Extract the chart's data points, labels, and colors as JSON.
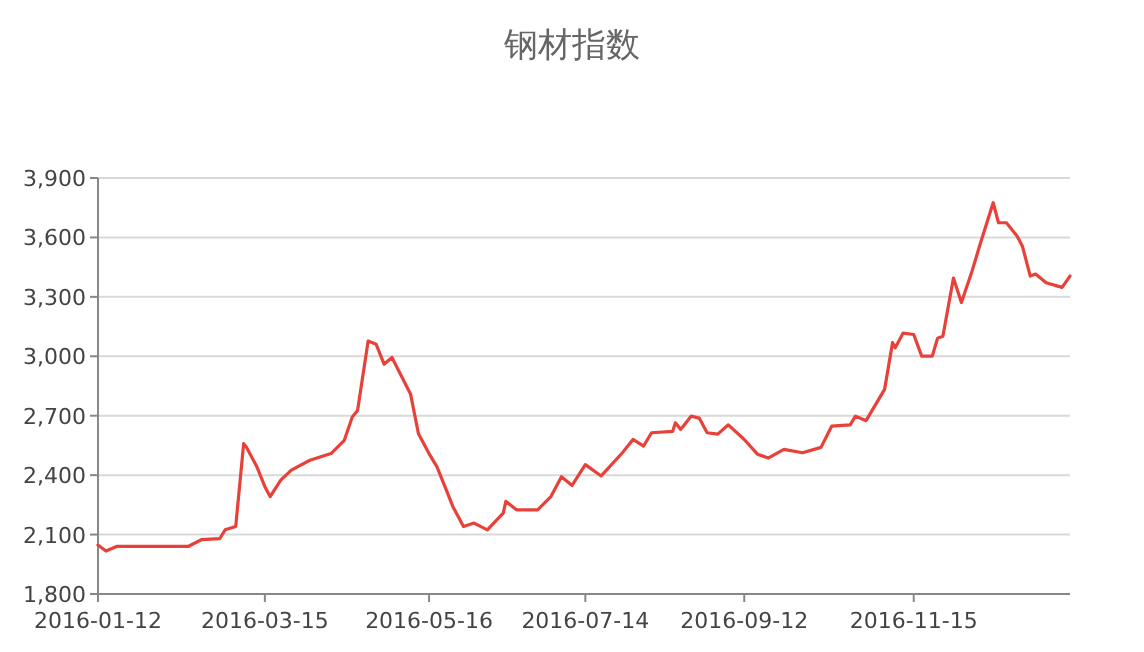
{
  "chart_data": {
    "type": "line",
    "title": "钢材指数",
    "x": [
      "2016-01-12",
      "2016-01-15",
      "2016-01-19",
      "2016-02-15",
      "2016-02-20",
      "2016-02-27",
      "2016-02-29",
      "2016-03-04",
      "2016-03-07",
      "2016-03-08",
      "2016-03-12",
      "2016-03-15",
      "2016-03-17",
      "2016-03-21",
      "2016-03-25",
      "2016-04-01",
      "2016-04-09",
      "2016-04-14",
      "2016-04-17",
      "2016-04-19",
      "2016-04-23",
      "2016-04-26",
      "2016-04-29",
      "2016-05-02",
      "2016-05-09",
      "2016-05-12",
      "2016-05-16",
      "2016-05-19",
      "2016-05-22",
      "2016-05-25",
      "2016-05-29",
      "2016-06-02",
      "2016-06-07",
      "2016-06-13",
      "2016-06-14",
      "2016-06-18",
      "2016-06-26",
      "2016-07-01",
      "2016-07-05",
      "2016-07-09",
      "2016-07-14",
      "2016-07-20",
      "2016-07-28",
      "2016-08-01",
      "2016-08-05",
      "2016-08-08",
      "2016-08-16",
      "2016-08-17",
      "2016-08-19",
      "2016-08-23",
      "2016-08-26",
      "2016-08-29",
      "2016-09-02",
      "2016-09-06",
      "2016-09-12",
      "2016-09-17",
      "2016-09-21",
      "2016-09-27",
      "2016-10-04",
      "2016-10-11",
      "2016-10-15",
      "2016-10-22",
      "2016-10-24",
      "2016-10-28",
      "2016-11-04",
      "2016-11-07",
      "2016-11-08",
      "2016-11-11",
      "2016-11-15",
      "2016-11-18",
      "2016-11-22",
      "2016-11-24",
      "2016-11-26",
      "2016-11-30",
      "2016-12-03",
      "2016-12-07",
      "2016-12-10",
      "2016-12-15",
      "2016-12-17",
      "2016-12-20",
      "2016-12-24",
      "2016-12-26",
      "2016-12-29",
      "2016-12-31",
      "2017-01-04",
      "2017-01-10",
      "2017-01-13"
    ],
    "series": [
      {
        "color": "#e8413a",
        "values": [
          2047,
          2017,
          2040,
          2040,
          2074,
          2080,
          2124,
          2141,
          2559,
          2542,
          2442,
          2342,
          2292,
          2375,
          2425,
          2475,
          2509,
          2576,
          2693,
          2726,
          3077,
          3061,
          2960,
          2994,
          2810,
          2609,
          2509,
          2442,
          2342,
          2241,
          2141,
          2158,
          2124,
          2208,
          2268,
          2225,
          2225,
          2292,
          2392,
          2348,
          2453,
          2396,
          2513,
          2580,
          2547,
          2614,
          2621,
          2664,
          2631,
          2698,
          2688,
          2614,
          2607,
          2654,
          2580,
          2506,
          2486,
          2530,
          2513,
          2540,
          2647,
          2654,
          2698,
          2675,
          2833,
          3069,
          3043,
          3117,
          3110,
          3001,
          3001,
          3091,
          3101,
          3395,
          3271,
          3429,
          3563,
          3775,
          3674,
          3674,
          3607,
          3557,
          3405,
          3415,
          3371,
          3348,
          3405
        ]
      }
    ],
    "xlim": [
      "2016-01-12",
      "2017-01-13"
    ],
    "xticks": [
      "2016-01-12",
      "2016-03-15",
      "2016-05-16",
      "2016-07-14",
      "2016-09-12",
      "2016-11-15"
    ],
    "ylim": [
      1800,
      3900
    ],
    "yticks": [
      {
        "value": 1800,
        "label": "1,800"
      },
      {
        "value": 2100,
        "label": "2,100"
      },
      {
        "value": 2400,
        "label": "2,400"
      },
      {
        "value": 2700,
        "label": "2,700"
      },
      {
        "value": 3000,
        "label": "3,000"
      },
      {
        "value": 3300,
        "label": "3,300"
      },
      {
        "value": 3600,
        "label": "3,600"
      },
      {
        "value": 3900,
        "label": "3,900"
      }
    ],
    "grid": "y"
  }
}
